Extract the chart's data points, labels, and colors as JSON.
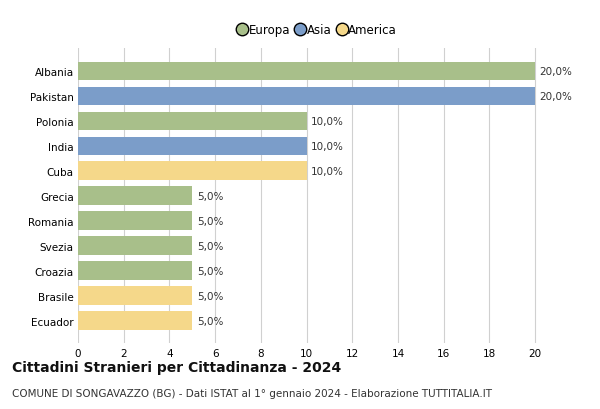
{
  "countries": [
    "Albania",
    "Pakistan",
    "Polonia",
    "India",
    "Cuba",
    "Grecia",
    "Romania",
    "Svezia",
    "Croazia",
    "Brasile",
    "Ecuador"
  ],
  "values": [
    20.0,
    20.0,
    10.0,
    10.0,
    10.0,
    5.0,
    5.0,
    5.0,
    5.0,
    5.0,
    5.0
  ],
  "continents": [
    "Europa",
    "Asia",
    "Europa",
    "Asia",
    "America",
    "Europa",
    "Europa",
    "Europa",
    "Europa",
    "America",
    "America"
  ],
  "colors": {
    "Europa": "#a8bf8a",
    "Asia": "#7b9dc9",
    "America": "#f5d88a"
  },
  "legend_order": [
    "Europa",
    "Asia",
    "America"
  ],
  "xlim": [
    0,
    21
  ],
  "xticks": [
    0,
    2,
    4,
    6,
    8,
    10,
    12,
    14,
    16,
    18,
    20
  ],
  "title": "Cittadini Stranieri per Cittadinanza - 2024",
  "subtitle": "COMUNE DI SONGAVAZZO (BG) - Dati ISTAT al 1° gennaio 2024 - Elaborazione TUTTITALIA.IT",
  "title_fontsize": 10,
  "subtitle_fontsize": 7.5,
  "tick_fontsize": 7.5,
  "bar_label_fontsize": 7.5,
  "legend_fontsize": 8.5,
  "background_color": "#ffffff",
  "grid_color": "#d0d0d0"
}
